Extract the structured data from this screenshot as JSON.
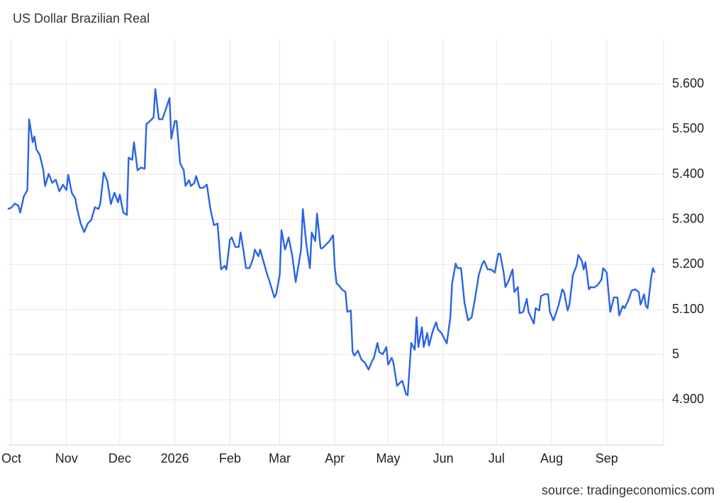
{
  "chart_data": {
    "type": "line",
    "title": "US Dollar Brazilian Real",
    "source": "source: tradingeconomics.com",
    "color": "#2b63e6",
    "grid": true,
    "y_axis_side": "right",
    "xlim": [
      -2.4,
      367
    ],
    "ylim": [
      4.8,
      5.7
    ],
    "xticks": [
      {
        "value": 0,
        "label": "Oct"
      },
      {
        "value": 31,
        "label": "Nov"
      },
      {
        "value": 61,
        "label": "Dec"
      },
      {
        "value": 92,
        "label": "2026"
      },
      {
        "value": 123,
        "label": "Feb"
      },
      {
        "value": 151,
        "label": "Mar"
      },
      {
        "value": 182,
        "label": "Apr"
      },
      {
        "value": 212,
        "label": "May"
      },
      {
        "value": 243,
        "label": "Jun"
      },
      {
        "value": 273,
        "label": "Jul"
      },
      {
        "value": 304,
        "label": "Aug"
      },
      {
        "value": 335,
        "label": "Sep"
      }
    ],
    "yticks": [
      {
        "value": 4.9,
        "label": "4.900"
      },
      5,
      {
        "value": 5.1,
        "label": "5.100"
      },
      {
        "value": 5.2,
        "label": "5.200"
      },
      {
        "value": 5.3,
        "label": "5.300"
      },
      {
        "value": 5.4,
        "label": "5.400"
      },
      {
        "value": 5.5,
        "label": "5.500"
      },
      {
        "value": 5.6,
        "label": "5.600"
      }
    ],
    "x": [
      -2,
      0,
      2,
      4,
      5,
      7,
      9,
      10,
      12,
      13,
      14,
      16,
      18,
      19,
      21,
      23,
      25,
      27,
      29,
      31,
      32,
      34,
      36,
      37,
      39,
      41,
      43,
      45,
      47,
      49,
      50,
      52,
      54,
      56,
      58,
      60,
      61,
      63,
      65,
      66,
      68,
      69,
      71,
      73,
      75,
      76,
      78,
      80,
      81,
      83,
      85,
      89,
      90,
      92,
      93,
      95,
      97,
      98,
      100,
      101,
      103,
      104,
      106,
      108,
      110,
      112,
      114,
      116,
      118,
      120,
      121,
      123,
      124,
      126,
      128,
      129,
      131,
      132,
      134,
      136,
      137,
      139,
      140,
      142,
      144,
      145,
      148,
      149,
      151,
      152,
      154,
      156,
      158,
      160,
      163,
      164,
      166,
      168,
      169,
      171,
      172,
      174,
      175,
      177,
      179,
      181,
      182,
      183,
      184,
      186,
      188,
      189,
      191,
      192,
      193,
      195,
      197,
      199,
      201,
      203,
      204,
      206,
      207,
      209,
      211,
      212,
      214,
      215,
      217,
      219,
      220,
      222,
      223,
      225,
      227,
      228,
      229,
      231,
      232,
      234,
      235,
      237,
      239,
      240,
      242,
      243,
      245,
      247,
      248,
      250,
      251,
      253,
      255,
      257,
      259,
      261,
      263,
      265,
      266,
      268,
      270,
      272,
      274,
      275,
      277,
      278,
      280,
      282,
      283,
      285,
      286,
      288,
      290,
      291,
      294,
      295,
      297,
      298,
      300,
      302,
      303,
      305,
      306,
      308,
      310,
      311,
      313,
      314,
      316,
      318,
      319,
      321,
      322,
      323,
      325,
      326,
      328,
      330,
      332,
      333,
      335,
      337,
      339,
      341,
      342,
      344,
      345,
      347,
      349,
      351,
      353,
      354,
      356,
      357,
      358,
      360,
      361,
      362
    ],
    "values": [
      5.323,
      5.326,
      5.335,
      5.33,
      5.315,
      5.351,
      5.365,
      5.522,
      5.471,
      5.484,
      5.456,
      5.443,
      5.409,
      5.374,
      5.401,
      5.381,
      5.388,
      5.362,
      5.377,
      5.365,
      5.399,
      5.359,
      5.346,
      5.323,
      5.291,
      5.272,
      5.291,
      5.299,
      5.327,
      5.323,
      5.334,
      5.404,
      5.385,
      5.334,
      5.359,
      5.338,
      5.355,
      5.315,
      5.31,
      5.437,
      5.432,
      5.471,
      5.409,
      5.415,
      5.412,
      5.511,
      5.518,
      5.526,
      5.589,
      5.522,
      5.522,
      5.569,
      5.479,
      5.518,
      5.518,
      5.424,
      5.409,
      5.374,
      5.387,
      5.374,
      5.381,
      5.396,
      5.37,
      5.37,
      5.377,
      5.323,
      5.287,
      5.291,
      5.189,
      5.197,
      5.189,
      5.255,
      5.26,
      5.239,
      5.239,
      5.271,
      5.221,
      5.192,
      5.192,
      5.213,
      5.233,
      5.218,
      5.233,
      5.205,
      5.177,
      5.166,
      5.127,
      5.134,
      5.177,
      5.276,
      5.233,
      5.26,
      5.221,
      5.161,
      5.233,
      5.323,
      5.244,
      5.192,
      5.271,
      5.252,
      5.313,
      5.236,
      5.236,
      5.244,
      5.252,
      5.265,
      5.192,
      5.158,
      5.155,
      5.145,
      5.139,
      5.095,
      5.098,
      5.006,
      4.998,
      5.009,
      4.989,
      4.982,
      4.967,
      4.986,
      4.993,
      5.026,
      5.006,
      5.001,
      5.017,
      4.978,
      4.993,
      4.982,
      4.931,
      4.939,
      4.942,
      4.913,
      4.91,
      5.026,
      5.011,
      5.083,
      5.017,
      5.061,
      5.017,
      5.048,
      5.02,
      5.051,
      5.072,
      5.056,
      5.048,
      5.04,
      5.025,
      5.083,
      5.158,
      5.202,
      5.192,
      5.192,
      5.114,
      5.076,
      5.083,
      5.127,
      5.177,
      5.202,
      5.208,
      5.189,
      5.189,
      5.182,
      5.224,
      5.224,
      5.182,
      5.15,
      5.166,
      5.189,
      5.139,
      5.15,
      5.092,
      5.095,
      5.124,
      5.095,
      5.069,
      5.103,
      5.098,
      5.13,
      5.134,
      5.134,
      5.095,
      5.076,
      5.087,
      5.111,
      5.145,
      5.139,
      5.098,
      5.111,
      5.177,
      5.197,
      5.221,
      5.208,
      5.189,
      5.205,
      5.145,
      5.15,
      5.149,
      5.155,
      5.166,
      5.192,
      5.182,
      5.095,
      5.127,
      5.127,
      5.087,
      5.108,
      5.103,
      5.119,
      5.142,
      5.145,
      5.139,
      5.111,
      5.134,
      5.108,
      5.103,
      5.171,
      5.192,
      5.182
    ]
  }
}
